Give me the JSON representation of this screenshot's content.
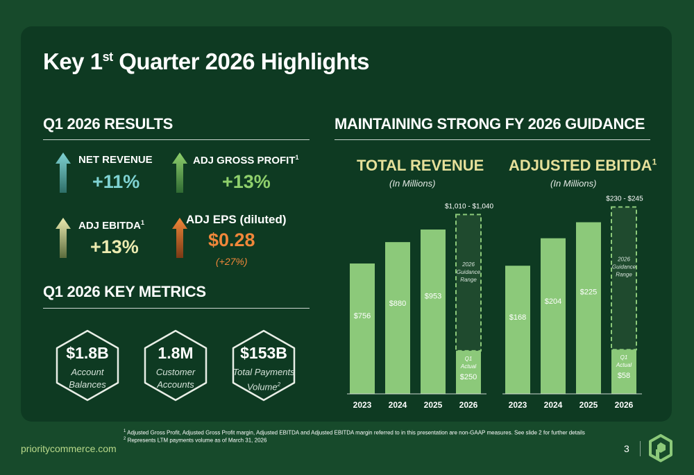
{
  "page": {
    "title_main": "Key 1",
    "title_sup": "st",
    "title_rest": " Quarter 2026 Highlights",
    "website": "prioritycommerce.com",
    "page_number": "3"
  },
  "results": {
    "heading": "Q1 2026 RESULTS",
    "net_revenue": {
      "label": "NET REVENUE",
      "value": "+11%"
    },
    "adj_gross_profit": {
      "label": "ADJ GROSS PROFIT",
      "sup": "1",
      "value": "+13%"
    },
    "adj_ebitda": {
      "label": "ADJ EBITDA",
      "sup": "1",
      "value": "+13%"
    },
    "adj_eps": {
      "label": "ADJ EPS (diluted)",
      "value": "$0.28",
      "sub": "(+27%)"
    }
  },
  "metrics": {
    "heading": "Q1 2026 KEY METRICS",
    "items": [
      {
        "value": "$1.8B",
        "line1": "Account",
        "line2": "Balances",
        "sup": ""
      },
      {
        "value": "1.8M",
        "line1": "Customer",
        "line2": "Accounts",
        "sup": ""
      },
      {
        "value": "$153B",
        "line1": "Total Payments",
        "line2": "Volume",
        "sup": "2"
      }
    ]
  },
  "guidance": {
    "heading": "MAINTAINING STRONG FY 2026 GUIDANCE"
  },
  "colors": {
    "bar": "#8cc97a",
    "guidance_fill": "#1f4a2e",
    "guidance_stroke": "#8cc97a",
    "net_revenue": "#7fd3d3",
    "gross_profit": "#8fd06c",
    "ebitda": "#ecebb0",
    "eps": "#f0873a"
  },
  "chart_data": [
    {
      "type": "bar",
      "title": "TOTAL REVENUE",
      "subtitle": "(In Millions)",
      "categories": [
        "2023",
        "2024",
        "2025",
        "2026"
      ],
      "values": [
        756,
        880,
        953,
        250
      ],
      "value_labels": [
        "$756",
        "$880",
        "$953",
        "$250"
      ],
      "ylim": [
        0,
        1150
      ],
      "q1_actual_label": [
        "Q1",
        "Actual"
      ],
      "guidance_range": [
        1010,
        1040
      ],
      "guidance_label": "$1,010 - $1,040",
      "guidance_text": [
        "2026",
        "Guidance",
        "Range"
      ]
    },
    {
      "type": "bar",
      "title": "ADJUSTED EBITDA",
      "title_sup": "1",
      "subtitle": "(In Millions)",
      "categories": [
        "2023",
        "2024",
        "2025",
        "2026"
      ],
      "values": [
        168,
        204,
        225,
        58
      ],
      "value_labels": [
        "$168",
        "$204",
        "$225",
        "$58"
      ],
      "ylim": [
        0,
        260
      ],
      "q1_actual_label": [
        "Q1",
        "Actual"
      ],
      "guidance_range": [
        230,
        245
      ],
      "guidance_label": "$230 - $245",
      "guidance_text": [
        "2026",
        "Guidance",
        "Range"
      ]
    }
  ],
  "footnotes": [
    {
      "sup": "1",
      "text": "Adjusted Gross Profit, Adjusted Gross Profit margin, Adjusted EBITDA and Adjusted EBITDA margin referred to in this presentation are non-GAAP measures. See slide 2 for further details"
    },
    {
      "sup": "2",
      "text": "Represents LTM payments volume as of March 31, 2026"
    }
  ]
}
